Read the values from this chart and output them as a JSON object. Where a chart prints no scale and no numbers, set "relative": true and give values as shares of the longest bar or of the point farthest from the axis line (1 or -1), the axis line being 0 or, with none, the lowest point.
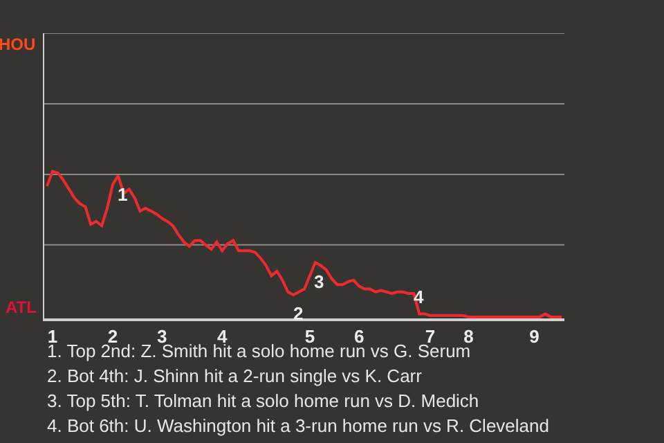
{
  "chart_data": {
    "type": "line",
    "relative": true,
    "categories": [
      null,
      "1",
      null,
      null,
      null,
      null,
      null,
      null,
      null,
      null,
      null,
      null,
      "2",
      null,
      null,
      null,
      null,
      null,
      null,
      null,
      null,
      "3",
      null,
      null,
      null,
      null,
      null,
      null,
      null,
      null,
      null,
      null,
      "4",
      null,
      null,
      null,
      null,
      null,
      null,
      null,
      null,
      null,
      null,
      null,
      null,
      null,
      null,
      null,
      "5",
      null,
      null,
      null,
      null,
      null,
      null,
      null,
      null,
      "6",
      null,
      null,
      null,
      null,
      null,
      null,
      null,
      null,
      null,
      null,
      null,
      null,
      "7",
      null,
      null,
      null,
      null,
      null,
      null,
      "8",
      null,
      null,
      null,
      null,
      null,
      null,
      null,
      null,
      null,
      null,
      null,
      "9",
      null,
      null,
      null,
      null,
      null
    ],
    "series": [
      {
        "color": "#ee2a2f",
        "values": [
          0.9,
          1.0,
          0.99,
          0.94,
          0.88,
          0.82,
          0.78,
          0.76,
          0.64,
          0.66,
          0.63,
          0.75,
          0.91,
          0.97,
          0.85,
          0.88,
          0.82,
          0.73,
          0.75,
          0.73,
          0.71,
          0.68,
          0.66,
          0.63,
          0.57,
          0.52,
          0.49,
          0.53,
          0.53,
          0.5,
          0.47,
          0.52,
          0.46,
          0.51,
          0.53,
          0.46,
          0.46,
          0.46,
          0.45,
          0.41,
          0.36,
          0.29,
          0.32,
          0.26,
          0.18,
          0.16,
          0.18,
          0.2,
          0.29,
          0.38,
          0.36,
          0.33,
          0.27,
          0.23,
          0.23,
          0.25,
          0.26,
          0.22,
          0.2,
          0.2,
          0.18,
          0.19,
          0.18,
          0.17,
          0.18,
          0.18,
          0.17,
          0.17,
          0.03,
          0.03,
          0.02,
          0.02,
          0.02,
          0.02,
          0.02,
          0.02,
          0.02,
          0.01,
          0.01,
          0.01,
          0.01,
          0.01,
          0.01,
          0.01,
          0.01,
          0.01,
          0.01,
          0.01,
          0.01,
          0.01,
          0.01,
          0.03,
          0.01,
          0.01,
          0.01
        ]
      }
    ],
    "ref_lines": [
      {
        "axis": "y",
        "value": 0.5,
        "color": "#8a8987"
      },
      {
        "axis": "y",
        "value": 0.98,
        "color": "#8a8987"
      },
      {
        "axis": "y",
        "value": 1.46,
        "color": "#8a8987"
      },
      {
        "axis": "y",
        "value": 1.94,
        "color": "#8a8987"
      }
    ],
    "marker": "none",
    "annotations": [
      "HOU",
      "ATL",
      {
        "text": "1",
        "y": 0.97
      },
      {
        "text": "2",
        "y": 0.16
      },
      {
        "text": "3",
        "y": 0.38
      },
      {
        "text": "4",
        "y": 0.03
      },
      "1. Top 2nd: Z. Smith hit a solo home run vs G. Serum",
      "2. Bot 4th: J. Shinn hit a 2-run single vs K. Carr",
      "3. Top 5th: T. Tolman hit a solo home run vs D. Medich",
      "4. Bot 6th: U. Washington hit a 3-run home run vs R. Cleveland"
    ]
  }
}
